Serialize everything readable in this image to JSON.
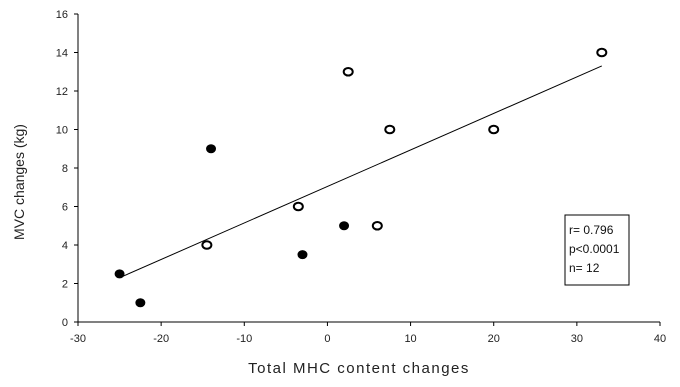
{
  "chart_data": {
    "type": "scatter",
    "xlabel": "Total MHC content changes",
    "ylabel": "MVC changes (kg)",
    "xlim": [
      -30,
      40
    ],
    "ylim": [
      0,
      16
    ],
    "x_ticks": [
      "-30",
      "-20",
      "-10",
      "0",
      "10",
      "20",
      "30",
      "40"
    ],
    "y_ticks": [
      "0",
      "2",
      "4",
      "6",
      "8",
      "10",
      "12",
      "14",
      "16"
    ],
    "grid": false,
    "series": [
      {
        "marker": "filled",
        "color": "#000000",
        "points": [
          [
            -25,
            2.5
          ],
          [
            -22.5,
            1.0
          ],
          [
            -14,
            9.0
          ],
          [
            -3,
            3.5
          ],
          [
            2,
            5.0
          ]
        ]
      },
      {
        "marker": "open",
        "color": "#000000",
        "points": [
          [
            -14.5,
            4.0
          ],
          [
            -3.5,
            6.0
          ],
          [
            2.5,
            13.0
          ],
          [
            6,
            5.0
          ],
          [
            7.5,
            10.0
          ],
          [
            20,
            10.0
          ],
          [
            33,
            14.0
          ]
        ]
      }
    ],
    "regression_line": {
      "x": [
        -25,
        33
      ],
      "y": [
        2.3,
        13.3
      ]
    },
    "annotation": {
      "lines": [
        "r= 0.796",
        "p<0.0001",
        "n= 12"
      ],
      "placement": "lower-right"
    }
  }
}
